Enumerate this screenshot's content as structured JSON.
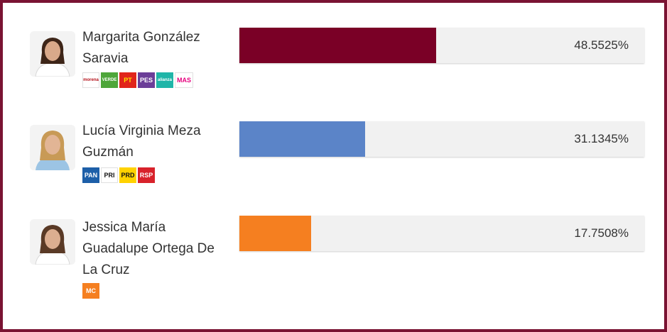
{
  "chart_data": {
    "type": "bar",
    "orientation": "horizontal",
    "categories": [
      "Margarita González Saravia",
      "Lucía Virginia Meza Guzmán",
      "Jessica María Guadalupe Ortega De La Cruz"
    ],
    "values": [
      48.5525,
      31.1345,
      17.7508
    ],
    "value_labels": [
      "48.5525%",
      "31.1345%",
      "17.7508%"
    ],
    "xlim": [
      0,
      100
    ],
    "colors": [
      "#7a0026",
      "#5b84c8",
      "#f57f20"
    ],
    "grid": false,
    "legend": "none"
  },
  "candidates": [
    {
      "name_line1": "Margarita González",
      "name_line2": "Saravia",
      "name_line3": "",
      "logos": [
        {
          "text": "morena",
          "bg": "#ffffff",
          "fg": "#b5121b",
          "w": 24
        },
        {
          "text": "VERDE",
          "bg": "#4ea63a",
          "fg": "#ffffff",
          "w": 24
        },
        {
          "text": "PT",
          "bg": "#e1251b",
          "fg": "#ffe000",
          "w": 24
        },
        {
          "text": "PES",
          "bg": "#6b3e98",
          "fg": "#ffffff",
          "w": 24
        },
        {
          "text": "alianza",
          "bg": "#1fb5a8",
          "fg": "#ffffff",
          "w": 24
        },
        {
          "text": "MAS",
          "bg": "#ffffff",
          "fg": "#e6007e",
          "w": 26
        }
      ]
    },
    {
      "name_line1": "Lucía Virginia Meza",
      "name_line2": "Guzmán",
      "name_line3": "",
      "logos": [
        {
          "text": "PAN",
          "bg": "#1d5fa8",
          "fg": "#ffffff",
          "w": 24
        },
        {
          "text": "PRI",
          "bg": "#ffffff",
          "fg": "#111111",
          "w": 24
        },
        {
          "text": "PRD",
          "bg": "#ffd200",
          "fg": "#111111",
          "w": 24
        },
        {
          "text": "RSP",
          "bg": "#d8222b",
          "fg": "#ffffff",
          "w": 24
        }
      ]
    },
    {
      "name_line1": "Jessica María",
      "name_line2": "Guadalupe Ortega De",
      "name_line3": "La Cruz",
      "logos": [
        {
          "text": "MC",
          "bg": "#f57f20",
          "fg": "#ffffff",
          "w": 24
        }
      ]
    }
  ]
}
